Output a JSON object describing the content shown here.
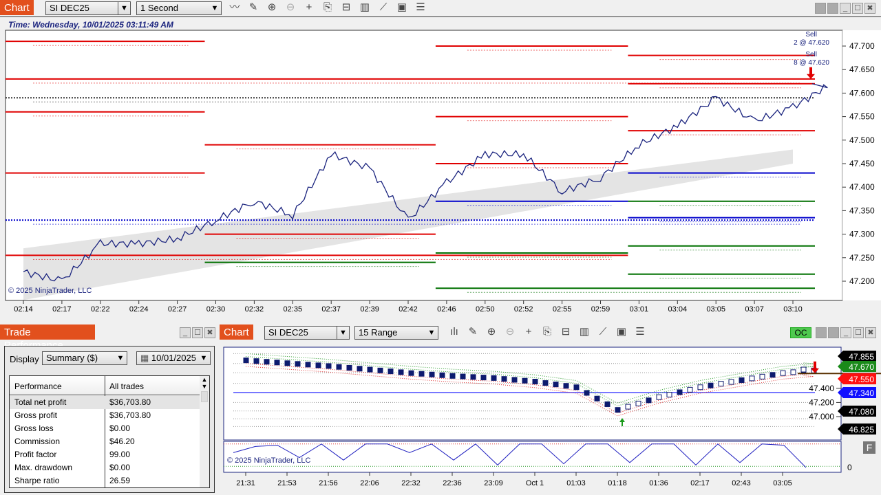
{
  "top_chart": {
    "tab_label": "Chart",
    "instrument": "SI DEC25",
    "interval": "1 Second",
    "time_text": "Time: Wednesday, 10/01/2025 03:11:49 AM",
    "copyright": "© 2025 NinjaTrader, LLC",
    "toolbar_icons": [
      "line-chart-icon",
      "pencil-icon",
      "zoom-in-icon",
      "zoom-out-icon",
      "crosshair-icon",
      "data-box-icon",
      "properties-icon",
      "bar-chart-icon",
      "strategy-icon",
      "calculator-icon",
      "list-icon"
    ],
    "annotations": [
      {
        "label": "Sell",
        "detail": "2 @ 47.620"
      },
      {
        "label": "Sell",
        "detail": "8 @ 47.620"
      }
    ],
    "colors": {
      "price": "#1a237e",
      "resistance": "#e00000",
      "support": "#007000",
      "pivot": "#0000cc"
    }
  },
  "bottom_chart": {
    "tab_label": "Chart",
    "instrument": "SI DEC25",
    "interval": "15 Range",
    "oc_label": "OC",
    "f_label": "F",
    "copyright": "© 2025 NinjaTrader, LLC",
    "price_badges": [
      {
        "value": "47.855",
        "color": "#000000"
      },
      {
        "value": "47.670",
        "color": "#1a8a1a"
      },
      {
        "value": "47.550",
        "color": "#ff1010"
      },
      {
        "value": "47.340",
        "color": "#1010ff"
      },
      {
        "value": "47.080",
        "color": "#000000"
      },
      {
        "value": "46.825",
        "color": "#000000"
      }
    ],
    "axis_ticks": [
      "47.400",
      "47.200",
      "47.000"
    ],
    "oscillator_tick": "0"
  },
  "trade_performance": {
    "title": "Trade Performance",
    "display_label": "Display",
    "display_value": "Summary ($)",
    "date_value": "10/01/2025",
    "columns": [
      "Performance",
      "All trades"
    ],
    "rows": [
      [
        "Total net profit",
        "$36,703.80"
      ],
      [
        "Gross profit",
        "$36,703.80"
      ],
      [
        "Gross loss",
        "$0.00"
      ],
      [
        "Commission",
        "$46.20"
      ],
      [
        "Profit factor",
        "99.00"
      ],
      [
        "Max. drawdown",
        "$0.00"
      ],
      [
        "Sharpe ratio",
        "26.59"
      ]
    ]
  },
  "chart_data": [
    {
      "type": "line",
      "title": "",
      "ylim": [
        47.17,
        47.74
      ],
      "y_ticks": [
        "47.700",
        "47.650",
        "47.600",
        "47.550",
        "47.500",
        "47.450",
        "47.400",
        "47.350",
        "47.300",
        "47.250",
        "47.200"
      ],
      "x": [
        "02:14",
        "02:17",
        "02:22",
        "02:24",
        "02:27",
        "02:30",
        "02:32",
        "02:35",
        "02:37",
        "02:39",
        "02:42",
        "02:46",
        "02:50",
        "02:52",
        "02:55",
        "02:59",
        "03:01",
        "03:04",
        "03:05",
        "03:07",
        "03:10"
      ],
      "series": [
        {
          "values": [
            47.22,
            47.2,
            47.28,
            47.28,
            47.29,
            47.33,
            47.37,
            47.34,
            47.47,
            47.44,
            47.33,
            47.41,
            47.47,
            47.47,
            47.39,
            47.42,
            47.49,
            47.53,
            47.59,
            47.54,
            47.57
          ],
          "last": 47.62
        }
      ],
      "levels": [
        {
          "price": 47.63,
          "color": "red",
          "from": 0,
          "to": 21
        },
        {
          "price": 47.62,
          "color": "red",
          "from": 16,
          "to": 21
        },
        {
          "price": 47.59,
          "color": "black-dotted",
          "from": 0,
          "to": 21
        },
        {
          "price": 47.56,
          "color": "red",
          "from": 0,
          "to": 5
        },
        {
          "price": 47.55,
          "color": "red",
          "from": 11,
          "to": 16
        },
        {
          "price": 47.52,
          "color": "red",
          "from": 16,
          "to": 21
        },
        {
          "price": 47.49,
          "color": "red",
          "from": 5,
          "to": 11
        },
        {
          "price": 47.45,
          "color": "red",
          "from": 11,
          "to": 16
        },
        {
          "price": 47.43,
          "color": "red",
          "from": 0,
          "to": 5
        },
        {
          "price": 47.43,
          "color": "blue",
          "from": 16,
          "to": 21
        },
        {
          "price": 47.37,
          "color": "green",
          "from": 16,
          "to": 21
        },
        {
          "price": 47.37,
          "color": "blue",
          "from": 11,
          "to": 16
        },
        {
          "price": 47.33,
          "color": "blue-dotted",
          "from": 0,
          "to": 21
        },
        {
          "price": 47.335,
          "color": "blue",
          "from": 16,
          "to": 21
        },
        {
          "price": 47.3,
          "color": "red",
          "from": 5,
          "to": 11
        },
        {
          "price": 47.255,
          "color": "red",
          "from": 0,
          "to": 16
        },
        {
          "price": 47.275,
          "color": "green",
          "from": 16,
          "to": 21
        },
        {
          "price": 47.24,
          "color": "green",
          "from": 5,
          "to": 11
        },
        {
          "price": 47.26,
          "color": "green",
          "from": 11,
          "to": 16
        },
        {
          "price": 47.215,
          "color": "green",
          "from": 16,
          "to": 21
        },
        {
          "price": 47.185,
          "color": "green",
          "from": 11,
          "to": 21
        },
        {
          "price": 47.71,
          "color": "red",
          "from": 0,
          "to": 5
        },
        {
          "price": 47.7,
          "color": "red",
          "from": 11,
          "to": 16
        },
        {
          "price": 47.68,
          "color": "red",
          "from": 16,
          "to": 21
        }
      ]
    },
    {
      "type": "candlestick",
      "title": "",
      "ylim": [
        46.78,
        47.91
      ],
      "x": [
        "21:31",
        "21:53",
        "21:56",
        "22:06",
        "22:32",
        "22:36",
        "23:09",
        "Oct 1",
        "01:03",
        "01:18",
        "01:36",
        "02:17",
        "02:43",
        "03:05"
      ],
      "closes": [
        47.8,
        47.76,
        47.72,
        47.67,
        47.62,
        47.58,
        47.55,
        47.5,
        47.42,
        47.1,
        47.28,
        47.42,
        47.52,
        47.62
      ],
      "last": 47.67,
      "oscillator": {
        "ylim": [
          0,
          100
        ],
        "values": [
          60,
          85,
          90,
          40,
          95,
          30,
          95,
          95,
          60,
          95,
          30,
          95,
          10,
          95,
          95,
          15,
          95,
          95,
          20,
          95,
          95,
          10,
          95,
          20,
          95,
          90,
          0
        ]
      }
    }
  ]
}
